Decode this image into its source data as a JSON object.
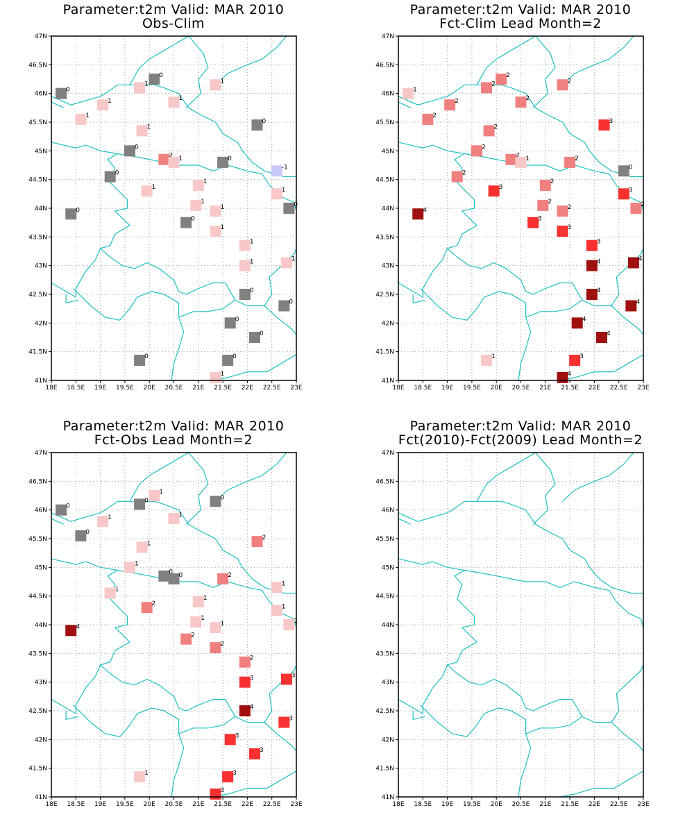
{
  "colors": {
    "coast": "#1fbfbf",
    "grid": "#a0a0a0",
    "zero": "#808080",
    "neg1": "#c8c8f8",
    "pos1": "#f8c8c8",
    "pos2": "#f08080",
    "pos3": "#f83030",
    "pos4": "#a01010"
  },
  "panels": [
    {
      "title_line1": "Parameter:t2m Valid: MAR 2010",
      "title_line2": "Obs-Clim",
      "stations": [
        {
          "lon": 18.2,
          "lat": 46.0,
          "v": "0"
        },
        {
          "lon": 20.1,
          "lat": 46.25,
          "v": "0"
        },
        {
          "lon": 19.8,
          "lat": 46.1,
          "v": "1"
        },
        {
          "lon": 19.05,
          "lat": 45.8,
          "v": "1"
        },
        {
          "lon": 20.5,
          "lat": 45.85,
          "v": "1"
        },
        {
          "lon": 21.35,
          "lat": 46.15,
          "v": "1"
        },
        {
          "lon": 18.6,
          "lat": 45.55,
          "v": "1"
        },
        {
          "lon": 19.85,
          "lat": 45.35,
          "v": "1"
        },
        {
          "lon": 22.2,
          "lat": 45.45,
          "v": "0"
        },
        {
          "lon": 19.6,
          "lat": 45.0,
          "v": "0"
        },
        {
          "lon": 20.3,
          "lat": 44.85,
          "v": "2"
        },
        {
          "lon": 20.5,
          "lat": 44.8,
          "v": "1"
        },
        {
          "lon": 21.5,
          "lat": 44.8,
          "v": "0"
        },
        {
          "lon": 22.6,
          "lat": 44.65,
          "v": "-1"
        },
        {
          "lon": 19.2,
          "lat": 44.55,
          "v": "0"
        },
        {
          "lon": 19.95,
          "lat": 44.3,
          "v": "1"
        },
        {
          "lon": 21.0,
          "lat": 44.4,
          "v": "1"
        },
        {
          "lon": 22.6,
          "lat": 44.25,
          "v": "1"
        },
        {
          "lon": 20.95,
          "lat": 44.05,
          "v": "1"
        },
        {
          "lon": 21.35,
          "lat": 43.95,
          "v": "1"
        },
        {
          "lon": 18.4,
          "lat": 43.9,
          "v": "0"
        },
        {
          "lon": 22.85,
          "lat": 44.0,
          "v": "0"
        },
        {
          "lon": 20.75,
          "lat": 43.75,
          "v": "0"
        },
        {
          "lon": 21.35,
          "lat": 43.6,
          "v": "1"
        },
        {
          "lon": 21.95,
          "lat": 43.35,
          "v": "1"
        },
        {
          "lon": 21.95,
          "lat": 43.0,
          "v": "1"
        },
        {
          "lon": 22.8,
          "lat": 43.05,
          "v": "1"
        },
        {
          "lon": 21.95,
          "lat": 42.5,
          "v": "0"
        },
        {
          "lon": 22.75,
          "lat": 42.3,
          "v": "0"
        },
        {
          "lon": 21.65,
          "lat": 42.0,
          "v": "0"
        },
        {
          "lon": 22.15,
          "lat": 41.75,
          "v": "0"
        },
        {
          "lon": 19.8,
          "lat": 41.35,
          "v": "0"
        },
        {
          "lon": 21.6,
          "lat": 41.35,
          "v": "0"
        },
        {
          "lon": 21.35,
          "lat": 41.05,
          "v": "1"
        }
      ]
    },
    {
      "title_line1": "Parameter:t2m Valid: MAR 2010",
      "title_line2": "Fct-Clim Lead Month=2",
      "stations": [
        {
          "lon": 18.2,
          "lat": 46.0,
          "v": "1"
        },
        {
          "lon": 20.1,
          "lat": 46.25,
          "v": "2"
        },
        {
          "lon": 19.8,
          "lat": 46.1,
          "v": "2"
        },
        {
          "lon": 19.05,
          "lat": 45.8,
          "v": "2"
        },
        {
          "lon": 20.5,
          "lat": 45.85,
          "v": "2"
        },
        {
          "lon": 21.35,
          "lat": 46.15,
          "v": "2"
        },
        {
          "lon": 18.6,
          "lat": 45.55,
          "v": "2"
        },
        {
          "lon": 19.85,
          "lat": 45.35,
          "v": "2"
        },
        {
          "lon": 22.2,
          "lat": 45.45,
          "v": "3"
        },
        {
          "lon": 19.6,
          "lat": 45.0,
          "v": "2"
        },
        {
          "lon": 20.3,
          "lat": 44.85,
          "v": "2"
        },
        {
          "lon": 20.5,
          "lat": 44.8,
          "v": "1"
        },
        {
          "lon": 21.5,
          "lat": 44.8,
          "v": "2"
        },
        {
          "lon": 22.6,
          "lat": 44.65,
          "v": "0"
        },
        {
          "lon": 19.2,
          "lat": 44.55,
          "v": "2"
        },
        {
          "lon": 19.95,
          "lat": 44.3,
          "v": "3"
        },
        {
          "lon": 21.0,
          "lat": 44.4,
          "v": "2"
        },
        {
          "lon": 22.6,
          "lat": 44.25,
          "v": "3"
        },
        {
          "lon": 20.95,
          "lat": 44.05,
          "v": "2"
        },
        {
          "lon": 21.35,
          "lat": 43.95,
          "v": "2"
        },
        {
          "lon": 18.4,
          "lat": 43.9,
          "v": "4"
        },
        {
          "lon": 22.85,
          "lat": 44.0,
          "v": "2"
        },
        {
          "lon": 20.75,
          "lat": 43.75,
          "v": "3"
        },
        {
          "lon": 21.35,
          "lat": 43.6,
          "v": "3"
        },
        {
          "lon": 21.95,
          "lat": 43.35,
          "v": "3"
        },
        {
          "lon": 21.95,
          "lat": 43.0,
          "v": "4"
        },
        {
          "lon": 22.8,
          "lat": 43.05,
          "v": "4"
        },
        {
          "lon": 21.95,
          "lat": 42.5,
          "v": "4"
        },
        {
          "lon": 22.75,
          "lat": 42.3,
          "v": "4"
        },
        {
          "lon": 21.65,
          "lat": 42.0,
          "v": "4"
        },
        {
          "lon": 22.15,
          "lat": 41.75,
          "v": "4"
        },
        {
          "lon": 19.8,
          "lat": 41.35,
          "v": "1"
        },
        {
          "lon": 21.6,
          "lat": 41.35,
          "v": "3"
        },
        {
          "lon": 21.35,
          "lat": 41.05,
          "v": "4"
        }
      ]
    },
    {
      "title_line1": "Parameter:t2m Valid: MAR 2010",
      "title_line2": "Fct-Obs Lead Month=2",
      "stations": [
        {
          "lon": 18.2,
          "lat": 46.0,
          "v": "0"
        },
        {
          "lon": 20.1,
          "lat": 46.25,
          "v": "1"
        },
        {
          "lon": 19.8,
          "lat": 46.1,
          "v": "0"
        },
        {
          "lon": 19.05,
          "lat": 45.8,
          "v": "1"
        },
        {
          "lon": 20.5,
          "lat": 45.85,
          "v": "1"
        },
        {
          "lon": 21.35,
          "lat": 46.15,
          "v": "0"
        },
        {
          "lon": 18.6,
          "lat": 45.55,
          "v": "0"
        },
        {
          "lon": 19.85,
          "lat": 45.35,
          "v": "1"
        },
        {
          "lon": 22.2,
          "lat": 45.45,
          "v": "2"
        },
        {
          "lon": 19.6,
          "lat": 45.0,
          "v": "1"
        },
        {
          "lon": 20.3,
          "lat": 44.85,
          "v": "0"
        },
        {
          "lon": 20.5,
          "lat": 44.8,
          "v": "0"
        },
        {
          "lon": 21.5,
          "lat": 44.8,
          "v": "2"
        },
        {
          "lon": 22.6,
          "lat": 44.65,
          "v": "1"
        },
        {
          "lon": 19.2,
          "lat": 44.55,
          "v": "1"
        },
        {
          "lon": 19.95,
          "lat": 44.3,
          "v": "2"
        },
        {
          "lon": 21.0,
          "lat": 44.4,
          "v": "1"
        },
        {
          "lon": 22.6,
          "lat": 44.25,
          "v": "1"
        },
        {
          "lon": 20.95,
          "lat": 44.05,
          "v": "1"
        },
        {
          "lon": 21.35,
          "lat": 43.95,
          "v": "1"
        },
        {
          "lon": 18.4,
          "lat": 43.9,
          "v": "4"
        },
        {
          "lon": 22.85,
          "lat": 44.0,
          "v": "1"
        },
        {
          "lon": 20.75,
          "lat": 43.75,
          "v": "2"
        },
        {
          "lon": 21.35,
          "lat": 43.6,
          "v": "2"
        },
        {
          "lon": 21.95,
          "lat": 43.35,
          "v": "2"
        },
        {
          "lon": 21.95,
          "lat": 43.0,
          "v": "3"
        },
        {
          "lon": 22.8,
          "lat": 43.05,
          "v": "3"
        },
        {
          "lon": 21.95,
          "lat": 42.5,
          "v": "4"
        },
        {
          "lon": 22.75,
          "lat": 42.3,
          "v": "3"
        },
        {
          "lon": 21.65,
          "lat": 42.0,
          "v": "3"
        },
        {
          "lon": 22.15,
          "lat": 41.75,
          "v": "3"
        },
        {
          "lon": 19.8,
          "lat": 41.35,
          "v": "1"
        },
        {
          "lon": 21.6,
          "lat": 41.35,
          "v": "3"
        },
        {
          "lon": 21.35,
          "lat": 41.05,
          "v": "3"
        }
      ]
    },
    {
      "title_line1": "Parameter:t2m Valid: MAR 2010",
      "title_line2": "Fct(2010)-Fct(2009) Lead Month=2",
      "stations": []
    }
  ],
  "axes": {
    "x_ticks": [
      "18E",
      "18.5E",
      "19E",
      "19.5E",
      "20E",
      "20.5E",
      "21E",
      "21.5E",
      "22E",
      "22.5E",
      "23E"
    ],
    "y_ticks": [
      "41N",
      "41.5N",
      "42N",
      "42.5N",
      "43N",
      "43.5N",
      "44N",
      "44.5N",
      "45N",
      "45.5N",
      "46N",
      "46.5N",
      "47N"
    ]
  }
}
